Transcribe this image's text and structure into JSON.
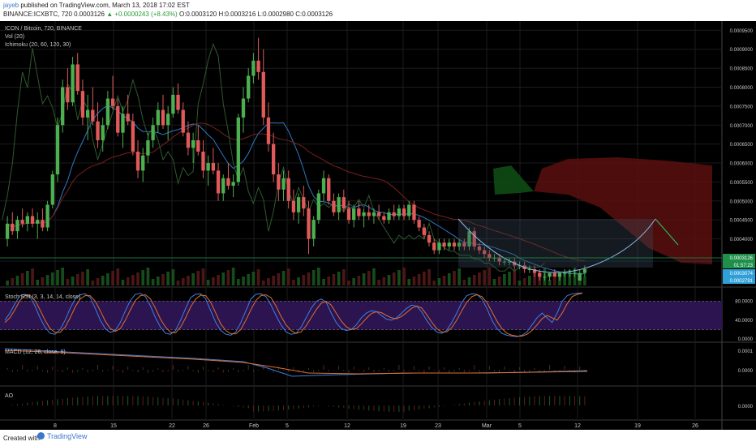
{
  "header": {
    "author": "jayeb",
    "published_text": "published on TradingView.com, March 13, 2018 17:02 EST",
    "symbol_line": "BINANCE:ICXBTC, 720  0.0003126",
    "change_text": "▲ +0.0000243 (+8.43%)",
    "ohlc_text": "O:0.0003120 H:0.0003216 L:0.0002980 C:0.0003126"
  },
  "footer": {
    "created_with": "Created with",
    "brand": "TradingView"
  },
  "chart_data": {
    "type": "candlestick",
    "title": "ICON / Bitcoin, 720, BINANCE",
    "indicators_main": [
      "Vol (20)",
      "Ichimoku (20, 60, 120, 30)"
    ],
    "y_price_ticks": [
      "0.0009500",
      "0.0009000",
      "0.0008500",
      "0.0008000",
      "0.0007500",
      "0.0007000",
      "0.0006500",
      "0.0006000",
      "0.0005500",
      "0.0005000",
      "0.0004500",
      "0.0004000",
      "0.0003500"
    ],
    "y_price_range": [
      0.00029,
      0.00097
    ],
    "x_ticks": [
      "8",
      "15",
      "22",
      "26",
      "Feb",
      "5",
      "12",
      "19",
      "23",
      "Mar",
      "5",
      "12",
      "19",
      "26"
    ],
    "price_badges": [
      {
        "text": "0.0003126",
        "color": "#1f8f4a"
      },
      {
        "text": "01:57:23",
        "color": "#1f8f4a"
      },
      {
        "text": "0.0003074",
        "color": "#2e9fd8"
      },
      {
        "text": "0.0002791",
        "color": "#2e9fd8"
      }
    ],
    "candles_approx": [
      [
        0.0004,
        0.00046,
        0.00038,
        0.00044
      ],
      [
        0.00044,
        0.00047,
        0.00041,
        0.00042
      ],
      [
        0.00042,
        0.00046,
        0.0004,
        0.00045
      ],
      [
        0.00045,
        0.00048,
        0.00043,
        0.00044
      ],
      [
        0.00044,
        0.00047,
        0.00042,
        0.00046
      ],
      [
        0.00046,
        0.00048,
        0.00043,
        0.00044
      ],
      [
        0.00044,
        0.00047,
        0.0004,
        0.00045
      ],
      [
        0.00045,
        0.00048,
        0.00042,
        0.00043
      ],
      [
        0.00043,
        0.0005,
        0.00042,
        0.00049
      ],
      [
        0.00049,
        0.00058,
        0.00048,
        0.00057
      ],
      [
        0.00057,
        0.00072,
        0.00055,
        0.0007
      ],
      [
        0.0007,
        0.00082,
        0.00068,
        0.0008
      ],
      [
        0.0008,
        0.00085,
        0.00074,
        0.00076
      ],
      [
        0.00076,
        0.00088,
        0.00075,
        0.00086
      ],
      [
        0.00086,
        0.00089,
        0.00078,
        0.00079
      ],
      [
        0.00079,
        0.00082,
        0.0007,
        0.00072
      ],
      [
        0.00072,
        0.00078,
        0.00066,
        0.00074
      ],
      [
        0.00074,
        0.0008,
        0.0007,
        0.00071
      ],
      [
        0.00071,
        0.00076,
        0.00064,
        0.00066
      ],
      [
        0.00066,
        0.00072,
        0.00063,
        0.0007
      ],
      [
        0.0007,
        0.00079,
        0.00069,
        0.00077
      ],
      [
        0.00077,
        0.00083,
        0.00074,
        0.00075
      ],
      [
        0.00075,
        0.00077,
        0.00067,
        0.00068
      ],
      [
        0.00068,
        0.00075,
        0.00064,
        0.00073
      ],
      [
        0.00073,
        0.00078,
        0.0007,
        0.00071
      ],
      [
        0.00071,
        0.00073,
        0.00062,
        0.00063
      ],
      [
        0.00063,
        0.00066,
        0.00056,
        0.00058
      ],
      [
        0.00058,
        0.00064,
        0.00055,
        0.00062
      ],
      [
        0.00062,
        0.00068,
        0.0006,
        0.00066
      ],
      [
        0.00066,
        0.00072,
        0.00064,
        0.0007
      ],
      [
        0.0007,
        0.00076,
        0.00068,
        0.00074
      ],
      [
        0.00074,
        0.00078,
        0.00069,
        0.0007
      ],
      [
        0.0007,
        0.00075,
        0.00066,
        0.00073
      ],
      [
        0.00073,
        0.0008,
        0.00072,
        0.00078
      ],
      [
        0.00078,
        0.00081,
        0.00073,
        0.00074
      ],
      [
        0.00074,
        0.00076,
        0.00067,
        0.00068
      ],
      [
        0.00068,
        0.00071,
        0.00062,
        0.00064
      ],
      [
        0.00064,
        0.00068,
        0.0006,
        0.00066
      ],
      [
        0.00066,
        0.0007,
        0.00062,
        0.00063
      ],
      [
        0.00063,
        0.00066,
        0.00056,
        0.00058
      ],
      [
        0.00058,
        0.00062,
        0.00054,
        0.0006
      ],
      [
        0.0006,
        0.00064,
        0.00057,
        0.00058
      ],
      [
        0.00058,
        0.0006,
        0.0005,
        0.00052
      ],
      [
        0.00052,
        0.00057,
        0.0005,
        0.00056
      ],
      [
        0.00056,
        0.0006,
        0.00053,
        0.00054
      ],
      [
        0.00054,
        0.00057,
        0.00051,
        0.00055
      ],
      [
        0.00055,
        0.00073,
        0.00054,
        0.00072
      ],
      [
        0.00072,
        0.0008,
        0.00068,
        0.00077
      ],
      [
        0.00077,
        0.00085,
        0.00076,
        0.00083
      ],
      [
        0.00083,
        0.00089,
        0.00081,
        0.00087
      ],
      [
        0.00087,
        0.00093,
        0.00082,
        0.00084
      ],
      [
        0.00084,
        0.0009,
        0.0007,
        0.00072
      ],
      [
        0.00072,
        0.00076,
        0.00063,
        0.00065
      ],
      [
        0.00065,
        0.00068,
        0.00055,
        0.00057
      ],
      [
        0.00057,
        0.0006,
        0.0005,
        0.00053
      ],
      [
        0.00053,
        0.00058,
        0.0005,
        0.00056
      ],
      [
        0.00056,
        0.00058,
        0.00048,
        0.0005
      ],
      [
        0.0005,
        0.00053,
        0.00045,
        0.00047
      ],
      [
        0.00047,
        0.00052,
        0.00044,
        0.00051
      ],
      [
        0.00051,
        0.00054,
        0.00046,
        0.00048
      ],
      [
        0.00048,
        0.0005,
        0.00036,
        0.0004
      ],
      [
        0.0004,
        0.00046,
        0.00038,
        0.00045
      ],
      [
        0.00045,
        0.00053,
        0.00044,
        0.00052
      ],
      [
        0.00052,
        0.00058,
        0.0005,
        0.00056
      ],
      [
        0.00056,
        0.00057,
        0.00049,
        0.0005
      ],
      [
        0.0005,
        0.00052,
        0.00046,
        0.00047
      ],
      [
        0.00047,
        0.00052,
        0.00045,
        0.00051
      ],
      [
        0.00051,
        0.00053,
        0.00047,
        0.00048
      ],
      [
        0.00048,
        0.0005,
        0.00044,
        0.00045
      ],
      [
        0.00045,
        0.00049,
        0.00043,
        0.00048
      ],
      [
        0.00048,
        0.0005,
        0.00045,
        0.00046
      ],
      [
        0.00046,
        0.00048,
        0.00043,
        0.00047
      ],
      [
        0.00047,
        0.00049,
        0.00045,
        0.00046
      ],
      [
        0.00046,
        0.00048,
        0.00044,
        0.00047
      ],
      [
        0.00047,
        0.00049,
        0.00045,
        0.00046
      ],
      [
        0.00046,
        0.00047,
        0.00044,
        0.00045
      ],
      [
        0.00045,
        0.00048,
        0.00044,
        0.00047
      ],
      [
        0.00047,
        0.00049,
        0.00045,
        0.00046
      ],
      [
        0.00046,
        0.00049,
        0.00045,
        0.00048
      ],
      [
        0.00048,
        0.00049,
        0.00045,
        0.00046
      ],
      [
        0.00046,
        0.0005,
        0.00045,
        0.00049
      ],
      [
        0.00049,
        0.0005,
        0.00044,
        0.00045
      ],
      [
        0.00045,
        0.00046,
        0.00042,
        0.00043
      ],
      [
        0.00043,
        0.00044,
        0.0004,
        0.00041
      ],
      [
        0.00041,
        0.00042,
        0.00038,
        0.00039
      ],
      [
        0.00039,
        0.0004,
        0.00036,
        0.00037
      ],
      [
        0.00037,
        0.0004,
        0.00036,
        0.00039
      ],
      [
        0.00039,
        0.0004,
        0.00037,
        0.00038
      ],
      [
        0.00038,
        0.0004,
        0.00037,
        0.00039
      ],
      [
        0.00039,
        0.0004,
        0.00037,
        0.00038
      ],
      [
        0.00038,
        0.0004,
        0.00037,
        0.00039
      ],
      [
        0.00039,
        0.0004,
        0.00037,
        0.00038
      ],
      [
        0.00038,
        0.00043,
        0.00037,
        0.00042
      ],
      [
        0.00042,
        0.00043,
        0.00037,
        0.00038
      ],
      [
        0.00038,
        0.00039,
        0.00036,
        0.00037
      ],
      [
        0.00037,
        0.00038,
        0.00035,
        0.00036
      ],
      [
        0.00036,
        0.00037,
        0.00034,
        0.00035
      ],
      [
        0.00035,
        0.00036,
        0.00034,
        0.00035
      ],
      [
        0.00035,
        0.00036,
        0.00033,
        0.00034
      ],
      [
        0.00034,
        0.00035,
        0.00033,
        0.00034
      ],
      [
        0.00034,
        0.00035,
        0.00033,
        0.00034
      ],
      [
        0.00034,
        0.00035,
        0.00032,
        0.00033
      ],
      [
        0.00033,
        0.00034,
        0.00032,
        0.00033
      ],
      [
        0.00033,
        0.00034,
        0.00031,
        0.00032
      ],
      [
        0.00032,
        0.00033,
        0.00031,
        0.00032
      ],
      [
        0.00032,
        0.00033,
        0.0003,
        0.00031
      ],
      [
        0.00031,
        0.00032,
        0.00029,
        0.0003
      ],
      [
        0.0003,
        0.00031,
        0.00029,
        0.0003
      ],
      [
        0.0003,
        0.00031,
        0.00029,
        0.00031
      ],
      [
        0.00031,
        0.00032,
        0.0003,
        0.0003
      ],
      [
        0.0003,
        0.00031,
        0.00029,
        0.00031
      ],
      [
        0.00031,
        0.00032,
        0.0003,
        0.00031
      ],
      [
        0.00031,
        0.00032,
        0.0003,
        0.00031
      ],
      [
        0.00031,
        0.00032,
        0.0003,
        0.00031
      ],
      [
        0.00029,
        0.00032,
        0.00029,
        0.00031
      ],
      [
        0.00031,
        0.00033,
        0.0003,
        0.00032
      ]
    ],
    "stoch_rsi": {
      "title": "Stoch RSI (3, 3, 14, 14, close)",
      "y_ticks": [
        "80.0000",
        "40.0000",
        "0.0000"
      ],
      "range": [
        0,
        100
      ],
      "band": [
        20,
        80
      ],
      "k": [
        40,
        55,
        75,
        92,
        95,
        90,
        70,
        45,
        25,
        12,
        10,
        20,
        40,
        65,
        85,
        94,
        96,
        88,
        65,
        40,
        22,
        14,
        18,
        35,
        60,
        82,
        95,
        97,
        90,
        70,
        45,
        25,
        12,
        10,
        18,
        40,
        65,
        88,
        95,
        96,
        85,
        60,
        35,
        18,
        10,
        8,
        15,
        35,
        60,
        85,
        95,
        96,
        90,
        72,
        50,
        30,
        15,
        10,
        12,
        25,
        45,
        65,
        80,
        85,
        78,
        55,
        35,
        22,
        18,
        20,
        30,
        45,
        55,
        60,
        58,
        50,
        42,
        40,
        45,
        55,
        65,
        72,
        70,
        58,
        40,
        25,
        15,
        12,
        18,
        35,
        55,
        78,
        92,
        96,
        95,
        85,
        65,
        40,
        22,
        12,
        8,
        6,
        5,
        8,
        15,
        30,
        45,
        55,
        45,
        35,
        55,
        80,
        92,
        96,
        97,
        98
      ],
      "d": [
        35,
        45,
        62,
        82,
        92,
        93,
        82,
        62,
        40,
        22,
        14,
        14,
        25,
        45,
        68,
        85,
        92,
        92,
        80,
        60,
        38,
        22,
        16,
        22,
        40,
        62,
        82,
        92,
        94,
        85,
        65,
        42,
        25,
        14,
        13,
        25,
        45,
        68,
        85,
        93,
        92,
        78,
        55,
        32,
        18,
        11,
        11,
        20,
        40,
        62,
        82,
        92,
        94,
        88,
        70,
        48,
        30,
        18,
        12,
        15,
        28,
        45,
        62,
        76,
        80,
        72,
        55,
        38,
        26,
        20,
        22,
        32,
        44,
        54,
        58,
        56,
        50,
        45,
        43,
        48,
        56,
        65,
        70,
        66,
        52,
        36,
        22,
        15,
        15,
        24,
        40,
        60,
        78,
        90,
        94,
        90,
        78,
        58,
        38,
        22,
        12,
        8,
        6,
        6,
        10,
        18,
        30,
        43,
        50,
        45,
        40,
        55,
        75,
        90,
        95,
        97
      ]
    },
    "macd": {
      "title": "MACD (12, 26, close, 9)",
      "y_ticks": [
        "0.0001",
        "0.0000"
      ]
    },
    "ao": {
      "title": "AO",
      "y_ticks": [
        "0.0000"
      ]
    }
  }
}
